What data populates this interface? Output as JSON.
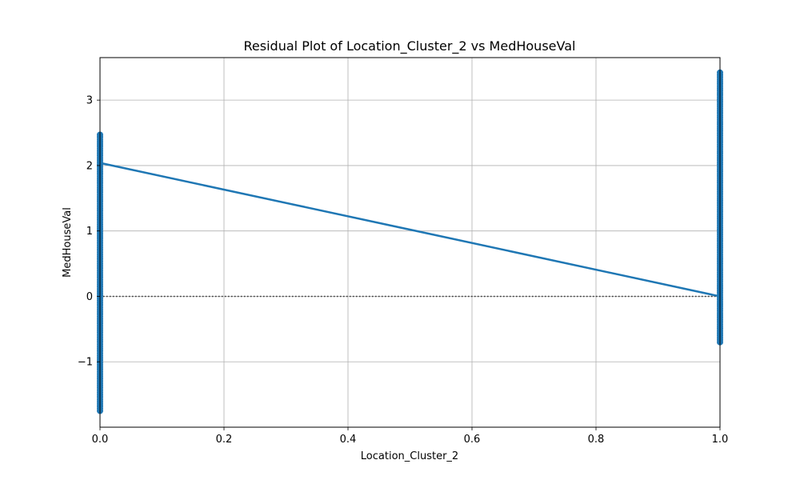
{
  "chart_data": {
    "type": "scatter",
    "title": "Residual Plot of Location_Cluster_2 vs MedHouseVal",
    "xlabel": "Location_Cluster_2",
    "ylabel": "MedHouseVal",
    "xlim": [
      0,
      1
    ],
    "ylim": [
      -2.0,
      3.65
    ],
    "x_ticks": [
      0,
      0.2,
      0.4,
      0.6,
      0.8,
      1.0
    ],
    "x_tick_labels": [
      "0.0",
      "0.2",
      "0.4",
      "0.6",
      "0.8",
      "1.0"
    ],
    "y_ticks": [
      -1,
      0,
      1,
      2,
      3
    ],
    "y_tick_labels": [
      "−1",
      "0",
      "1",
      "2",
      "3"
    ],
    "grid": true,
    "legend": "none",
    "series": [
      {
        "x_value": 0,
        "residual_range": [
          -1.75,
          2.47
        ],
        "color": "#1f77b4"
      },
      {
        "x_value": 1,
        "residual_range": [
          -0.7,
          3.42
        ],
        "color": "#1f77b4"
      }
    ],
    "fit_line": {
      "x": [
        0,
        1
      ],
      "y": [
        2.04,
        0.0
      ],
      "color": "#1f77b4"
    },
    "zero_line": {
      "y": 0,
      "style": "dotted",
      "color": "#333333"
    }
  }
}
